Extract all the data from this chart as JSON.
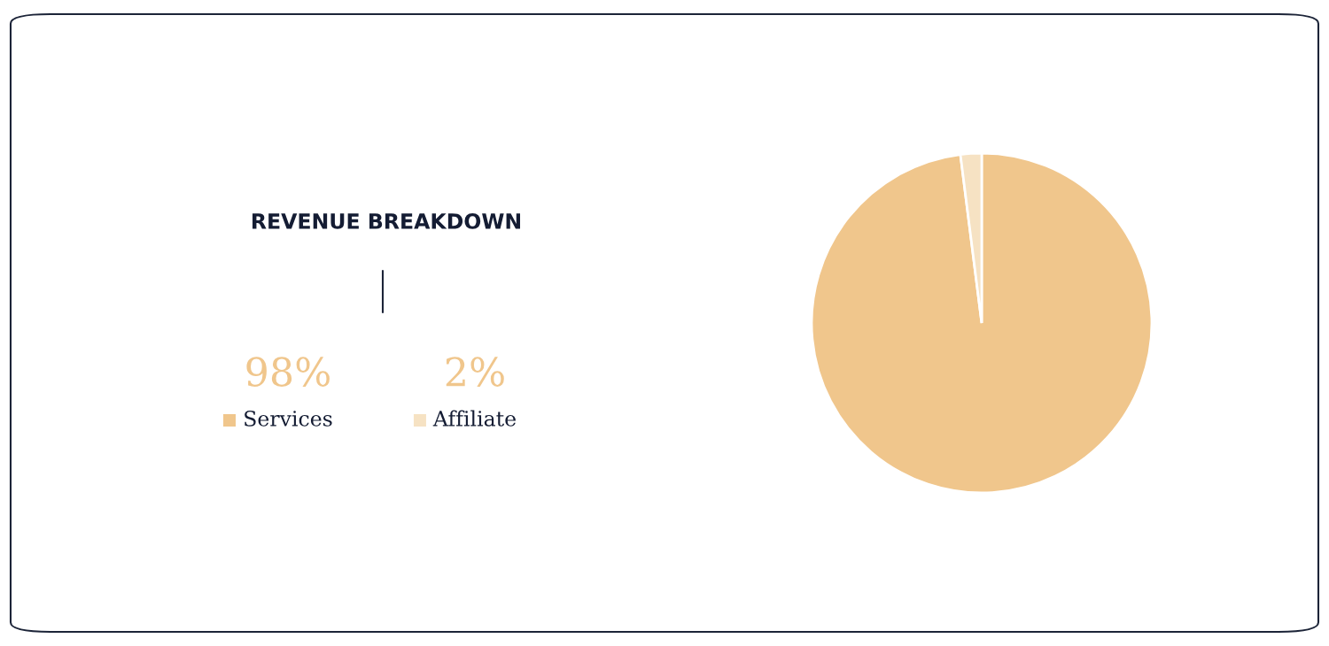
{
  "chart_data": {
    "type": "pie",
    "title": "REVENUE BREAKDOWN",
    "categories": [
      "Services",
      "Affiliate"
    ],
    "values": [
      98,
      2
    ],
    "colors": [
      "#f0c68c",
      "#f6e2c3"
    ],
    "value_labels": [
      "98%",
      "2%"
    ],
    "legend": "left"
  }
}
